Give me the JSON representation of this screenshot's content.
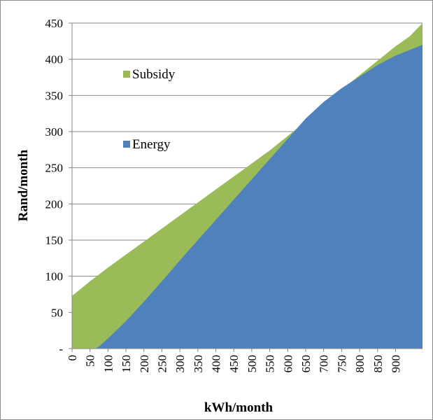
{
  "chart_data": {
    "type": "area",
    "stacked": false,
    "title": "",
    "xlabel": "kWh/month",
    "ylabel": "Rand/month",
    "xlim": [
      0,
      975
    ],
    "ylim": [
      0,
      450
    ],
    "x_ticks": [
      "0",
      "50",
      "100",
      "150",
      "200",
      "250",
      "300",
      "350",
      "400",
      "450",
      "500",
      "550",
      "600",
      "650",
      "700",
      "750",
      "800",
      "850",
      "900"
    ],
    "y_ticks": [
      "-",
      "50",
      "100",
      "150",
      "200",
      "250",
      "300",
      "350",
      "400",
      "450"
    ],
    "grid": "horizontal",
    "legend_position": "upper-left inside plot",
    "series": [
      {
        "name": "Subsidy",
        "color": "#9bbb59",
        "x": [
          0,
          50,
          100,
          150,
          200,
          250,
          300,
          350,
          400,
          450,
          500,
          550,
          600,
          650,
          700,
          750,
          800,
          850,
          900,
          940,
          975
        ],
        "y": [
          73,
          93,
          112,
          130,
          148,
          166,
          184,
          202,
          220,
          238,
          256,
          274,
          294,
          314,
          336,
          358,
          378,
          398,
          418,
          432,
          450
        ]
      },
      {
        "name": "Energy",
        "color": "#4f81bd",
        "x": [
          0,
          65,
          75,
          100,
          150,
          200,
          250,
          300,
          350,
          400,
          450,
          500,
          550,
          600,
          650,
          700,
          750,
          800,
          850,
          900,
          975
        ],
        "y": [
          0,
          0,
          3,
          14,
          38,
          65,
          93,
          122,
          150,
          178,
          206,
          234,
          262,
          290,
          318,
          341,
          360,
          376,
          392,
          405,
          420
        ]
      }
    ]
  }
}
